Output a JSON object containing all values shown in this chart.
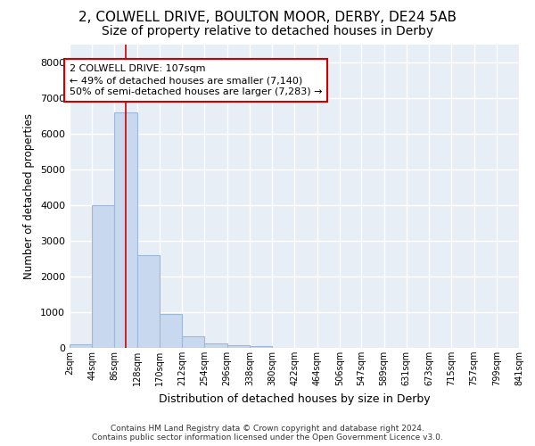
{
  "title1": "2, COLWELL DRIVE, BOULTON MOOR, DERBY, DE24 5AB",
  "title2": "Size of property relative to detached houses in Derby",
  "xlabel": "Distribution of detached houses by size in Derby",
  "ylabel": "Number of detached properties",
  "bar_values": [
    100,
    4000,
    6600,
    2600,
    950,
    320,
    130,
    80,
    50,
    0,
    0,
    0,
    0,
    0,
    0,
    0,
    0,
    0,
    0,
    0
  ],
  "bin_edges": [
    2,
    44,
    86,
    128,
    170,
    212,
    254,
    296,
    338,
    380,
    422,
    464,
    506,
    547,
    589,
    631,
    673,
    715,
    757,
    799,
    841
  ],
  "tick_labels": [
    "2sqm",
    "44sqm",
    "86sqm",
    "128sqm",
    "170sqm",
    "212sqm",
    "254sqm",
    "296sqm",
    "338sqm",
    "380sqm",
    "422sqm",
    "464sqm",
    "506sqm",
    "547sqm",
    "589sqm",
    "631sqm",
    "673sqm",
    "715sqm",
    "757sqm",
    "799sqm",
    "841sqm"
  ],
  "bar_color": "#c8d8ee",
  "bar_edge_color": "#a0b8d8",
  "vline_x": 107,
  "vline_color": "#cc0000",
  "ylim": [
    0,
    8500
  ],
  "yticks": [
    0,
    1000,
    2000,
    3000,
    4000,
    5000,
    6000,
    7000,
    8000
  ],
  "annotation_text": "2 COLWELL DRIVE: 107sqm\n← 49% of detached houses are smaller (7,140)\n50% of semi-detached houses are larger (7,283) →",
  "annotation_box_color": "#cc0000",
  "footer_text": "Contains HM Land Registry data © Crown copyright and database right 2024.\nContains public sector information licensed under the Open Government Licence v3.0.",
  "fig_background": "#ffffff",
  "plot_background": "#e8eef6",
  "grid_color": "#ffffff",
  "title1_fontsize": 11,
  "title2_fontsize": 10
}
